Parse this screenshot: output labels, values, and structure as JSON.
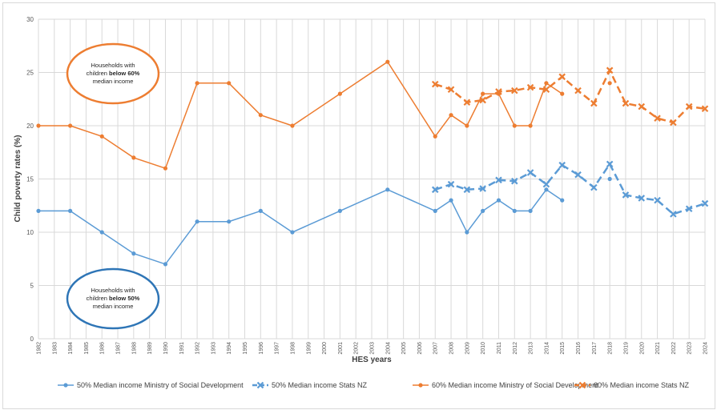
{
  "chart_data": {
    "type": "line",
    "xlabel": "HES years",
    "ylabel": "Child poverty rates (%)",
    "ylim": [
      0,
      30
    ],
    "yticks": [
      0,
      5,
      10,
      15,
      20,
      25,
      30
    ],
    "xlim": [
      1982,
      2024
    ],
    "grid": true,
    "legend_position": "bottom",
    "series": [
      {
        "name": "50% Median income Ministry of Social Development",
        "color": "#5b9bd5",
        "style": "solid",
        "marker": "circle",
        "x": [
          1982,
          1984,
          1986,
          1988,
          1990,
          1992,
          1994,
          1996,
          1998,
          2001,
          2004,
          2007,
          2008,
          2009,
          2010,
          2011,
          2012,
          2013,
          2014,
          2015
        ],
        "y": [
          12,
          12,
          10,
          8,
          7,
          11,
          11,
          12,
          10,
          12,
          14,
          12,
          13,
          10,
          12,
          13,
          12,
          12,
          14,
          13
        ],
        "extra_points": {
          "x": [
            2018
          ],
          "y": [
            15
          ]
        }
      },
      {
        "name": "50% Median income Stats NZ",
        "color": "#5b9bd5",
        "style": "dashed",
        "marker": "x",
        "x": [
          2007,
          2008,
          2009,
          2010,
          2011,
          2012,
          2013,
          2014,
          2015,
          2016,
          2017,
          2018,
          2019,
          2020,
          2021,
          2022,
          2023,
          2024
        ],
        "y": [
          14.0,
          14.5,
          14.0,
          14.1,
          14.9,
          14.8,
          15.6,
          14.5,
          16.3,
          15.4,
          14.2,
          16.4,
          13.5,
          13.2,
          13.0,
          11.7,
          12.2,
          12.7
        ]
      },
      {
        "name": "60% Median income Ministry of Social Development",
        "color": "#ed7d31",
        "style": "solid",
        "marker": "circle",
        "x": [
          1982,
          1984,
          1986,
          1988,
          1990,
          1992,
          1994,
          1996,
          1998,
          2001,
          2004,
          2007,
          2008,
          2009,
          2010,
          2011,
          2012,
          2013,
          2014,
          2015
        ],
        "y": [
          20,
          20,
          19,
          17,
          16,
          24,
          24,
          21,
          20,
          23,
          26,
          19,
          21,
          20,
          23,
          23,
          20,
          20,
          24,
          23
        ],
        "extra_points": {
          "x": [
            2018
          ],
          "y": [
            24
          ]
        }
      },
      {
        "name": "60% Median income Stats NZ",
        "color": "#ed7d31",
        "style": "dashed",
        "marker": "x",
        "x": [
          2007,
          2008,
          2009,
          2010,
          2011,
          2012,
          2013,
          2014,
          2015,
          2016,
          2017,
          2018,
          2019,
          2020,
          2021,
          2022,
          2023,
          2024
        ],
        "y": [
          23.9,
          23.4,
          22.2,
          22.4,
          23.2,
          23.3,
          23.6,
          23.4,
          24.6,
          23.3,
          22.1,
          25.2,
          22.1,
          21.8,
          20.7,
          20.3,
          21.8,
          21.6
        ]
      }
    ],
    "annotations": [
      {
        "color": "#ed7d31",
        "lines": [
          [
            "Households with"
          ],
          [
            "children ",
            "below 60%"
          ],
          [
            "median income"
          ]
        ]
      },
      {
        "color": "#2e75b6",
        "lines": [
          [
            "Households with"
          ],
          [
            "children ",
            "below 50%"
          ],
          [
            "median income"
          ]
        ]
      }
    ]
  }
}
